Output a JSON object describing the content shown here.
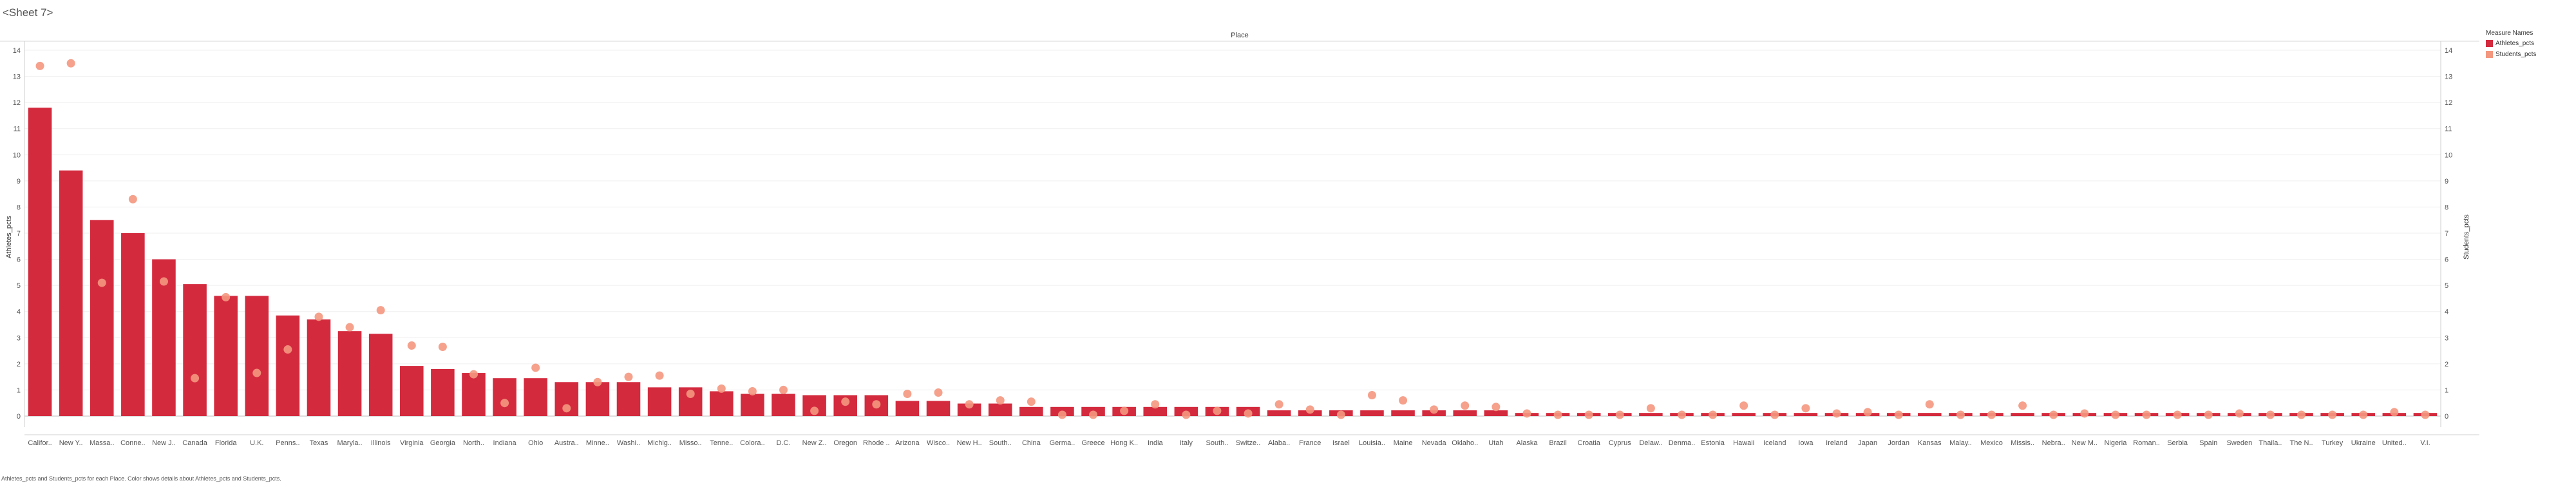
{
  "sheet_title": "<Sheet 7>",
  "caption": "Athletes_pcts and Students_pcts for each Place.  Color shows details about Athletes_pcts and Students_pcts.",
  "colors": {
    "athletes": "#d42a3e",
    "students": "#f4977f"
  },
  "chart_data": {
    "type": "bar",
    "title": "Place",
    "ylabel_left": "Athletes_pcts",
    "ylabel_right": "Students_pcts",
    "ylim": [
      0,
      14
    ],
    "yticks": [
      0,
      1,
      2,
      3,
      4,
      5,
      6,
      7,
      8,
      9,
      10,
      11,
      12,
      13,
      14
    ],
    "grid": true,
    "legend": {
      "title": "Measure Names",
      "placement": "top-right",
      "entries": [
        "Athletes_pcts",
        "Students_pcts"
      ]
    },
    "categories": [
      "Califor..",
      "New Y..",
      "Massa..",
      "Conne..",
      "New J..",
      "Canada",
      "Florida",
      "U.K.",
      "Penns..",
      "Texas",
      "Maryla..",
      "Illinois",
      "Virginia",
      "Georgia",
      "North..",
      "Indiana",
      "Ohio",
      "Austra..",
      "Minne..",
      "Washi..",
      "Michig..",
      "Misso..",
      "Tenne..",
      "Colora..",
      "D.C.",
      "New Z..",
      "Oregon",
      "Rhode ..",
      "Arizona",
      "Wisco..",
      "New H..",
      "South..",
      "China",
      "Germa..",
      "Greece",
      "Hong K..",
      "India",
      "Italy",
      "South..",
      "Switze..",
      "Alaba..",
      "France",
      "Israel",
      "Louisia..",
      "Maine",
      "Nevada",
      "Oklaho..",
      "Utah",
      "Alaska",
      "Brazil",
      "Croatia",
      "Cyprus",
      "Delaw..",
      "Denma..",
      "Estonia",
      "Hawaii",
      "Iceland",
      "Iowa",
      "Ireland",
      "Japan",
      "Jordan",
      "Kansas",
      "Malay..",
      "Mexico",
      "Missis..",
      "Nebra..",
      "New M..",
      "Nigeria",
      "Roman..",
      "Serbia",
      "Spain",
      "Sweden",
      "Thaila..",
      "The N..",
      "Turkey",
      "Ukraine",
      "United..",
      "V.I."
    ],
    "series": [
      {
        "name": "Athletes_pcts",
        "mark": "bar",
        "values": [
          11.8,
          9.4,
          7.5,
          7.0,
          6.0,
          5.05,
          4.6,
          4.6,
          3.85,
          3.7,
          3.25,
          3.15,
          1.92,
          1.8,
          1.65,
          1.45,
          1.45,
          1.3,
          1.3,
          1.3,
          1.1,
          1.1,
          0.95,
          0.85,
          0.85,
          0.8,
          0.8,
          0.8,
          0.58,
          0.58,
          0.48,
          0.48,
          0.35,
          0.35,
          0.35,
          0.35,
          0.35,
          0.35,
          0.35,
          0.35,
          0.22,
          0.22,
          0.22,
          0.22,
          0.22,
          0.22,
          0.22,
          0.22,
          0.12,
          0.12,
          0.12,
          0.12,
          0.12,
          0.12,
          0.12,
          0.12,
          0.12,
          0.12,
          0.12,
          0.12,
          0.12,
          0.12,
          0.12,
          0.12,
          0.12,
          0.12,
          0.12,
          0.12,
          0.12,
          0.12,
          0.12,
          0.12,
          0.12,
          0.12,
          0.12,
          0.12,
          0.12,
          0.12
        ]
      },
      {
        "name": "Students_pcts",
        "mark": "circle",
        "values": [
          13.4,
          13.5,
          5.1,
          8.3,
          5.15,
          1.45,
          4.55,
          1.65,
          2.55,
          3.8,
          3.4,
          4.05,
          2.7,
          2.65,
          1.6,
          0.5,
          1.85,
          0.3,
          1.3,
          1.5,
          1.55,
          0.85,
          1.05,
          0.95,
          1.0,
          0.2,
          0.55,
          0.45,
          0.85,
          0.9,
          0.45,
          0.6,
          0.55,
          0.05,
          0.05,
          0.2,
          0.45,
          0.05,
          0.2,
          0.1,
          0.45,
          0.25,
          0.05,
          0.8,
          0.6,
          0.25,
          0.4,
          0.35,
          0.1,
          0.05,
          0.05,
          0.05,
          0.3,
          0.05,
          0.05,
          0.4,
          0.05,
          0.3,
          0.1,
          0.15,
          0.05,
          0.45,
          0.05,
          0.05,
          0.4,
          0.05,
          0.1,
          0.05,
          0.05,
          0.05,
          0.05,
          0.1,
          0.05,
          0.05,
          0.05,
          0.05,
          0.15,
          0.05
        ]
      }
    ]
  }
}
